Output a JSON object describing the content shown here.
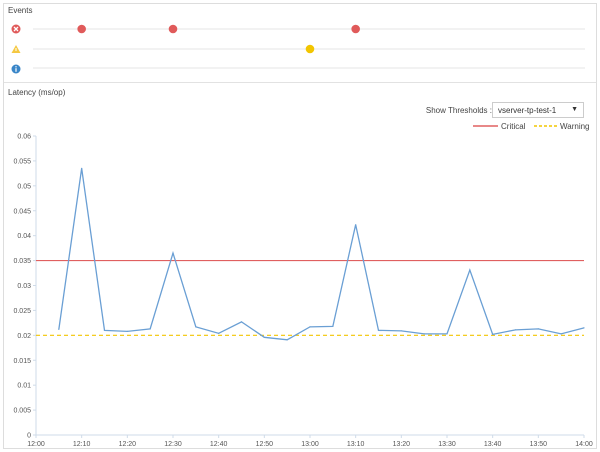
{
  "events": {
    "title": "Events",
    "rows": [
      {
        "type": "critical",
        "icon": "critical-x-icon",
        "color": "#e05a5a",
        "times": [
          "12:10",
          "12:30",
          "13:10"
        ]
      },
      {
        "type": "warning",
        "icon": "warning-triangle-icon",
        "color": "#f2c500",
        "times": [
          "13:00"
        ]
      },
      {
        "type": "info",
        "icon": "info-icon",
        "color": "#3a86c8",
        "times": []
      }
    ]
  },
  "latency": {
    "title": "Latency (ms/op)",
    "show_thresholds_label": "Show Thresholds :",
    "threshold_select": "vserver-tp-test-1",
    "legend": {
      "critical": "Critical",
      "warning": "Warning"
    }
  },
  "chart_data": {
    "type": "line",
    "x": [
      "12:05",
      "12:10",
      "12:15",
      "12:20",
      "12:25",
      "12:30",
      "12:35",
      "12:40",
      "12:45",
      "12:50",
      "12:55",
      "13:00",
      "13:05",
      "13:10",
      "13:15",
      "13:20",
      "13:25",
      "13:30",
      "13:35",
      "13:40",
      "13:45",
      "13:50",
      "13:55",
      "14:00"
    ],
    "series": [
      {
        "values": [
          0.0212,
          0.0535,
          0.021,
          0.0208,
          0.0213,
          0.0365,
          0.0217,
          0.0204,
          0.0227,
          0.0196,
          0.0191,
          0.0217,
          0.0218,
          0.0422,
          0.021,
          0.0209,
          0.0203,
          0.0203,
          0.0331,
          0.0202,
          0.0211,
          0.0213,
          0.0203,
          0.0215
        ],
        "color": "#6a9fd4"
      }
    ],
    "thresholds": [
      {
        "name": "Critical",
        "value": 0.035,
        "color": "#e06060",
        "style": "solid"
      },
      {
        "name": "Warning",
        "value": 0.02,
        "color": "#f2c500",
        "style": "dashed"
      }
    ],
    "xticks": [
      "12:00",
      "12:10",
      "12:20",
      "12:30",
      "12:40",
      "12:50",
      "13:00",
      "13:10",
      "13:20",
      "13:30",
      "13:40",
      "13:50",
      "14:00"
    ],
    "yticks": [
      "0",
      "0.005",
      "0.01",
      "0.015",
      "0.02",
      "0.025",
      "0.03",
      "0.035",
      "0.04",
      "0.045",
      "0.05",
      "0.055",
      "0.06"
    ],
    "xlim": [
      "12:00",
      "14:00"
    ],
    "ylim": [
      0,
      0.06
    ],
    "grid": false,
    "legend_position": "top-right"
  }
}
